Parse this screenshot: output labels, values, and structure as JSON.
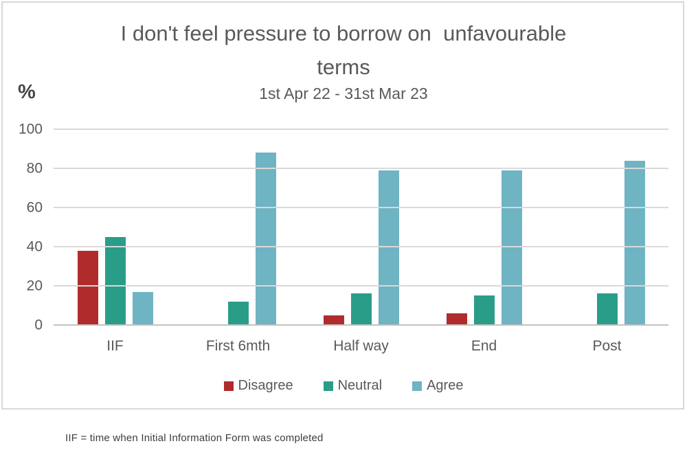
{
  "chart_data": {
    "type": "bar",
    "title": "I don't feel pressure to borrow on  unfavourable\nterms",
    "subtitle": "1st Apr 22 - 31st Mar 23",
    "ylabel": "%",
    "xlabel": "",
    "categories": [
      "IIF",
      "First 6mth",
      "Half way",
      "End",
      "Post"
    ],
    "series": [
      {
        "name": "Disagree",
        "color": "#b02c2c",
        "values": [
          38,
          0,
          5,
          6,
          0
        ]
      },
      {
        "name": "Neutral",
        "color": "#2a9d89",
        "values": [
          45,
          12,
          16,
          15,
          16
        ]
      },
      {
        "name": "Agree",
        "color": "#6fb4c3",
        "values": [
          17,
          88,
          79,
          79,
          84
        ]
      }
    ],
    "ylim": [
      0,
      100
    ],
    "yticks": [
      0,
      20,
      40,
      60,
      80,
      100
    ],
    "grid": true,
    "legend_position": "bottom",
    "footnote": "IIF = time when Initial Information Form was completed"
  },
  "colors": {
    "gridline": "#d9d9d9",
    "axis_line": "#c2c2c2",
    "frame_border": "#d8d8d8",
    "text": "#595959"
  }
}
